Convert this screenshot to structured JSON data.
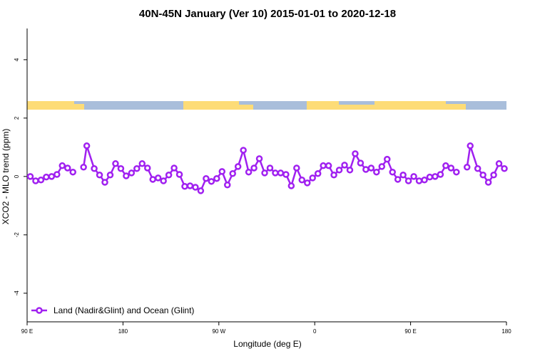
{
  "chart_data": {
    "type": "line",
    "title": "40N-45N January (Ver 10)   2015-01-01 to 2020-12-18",
    "xlabel": "Longitude (deg E)",
    "ylabel": "XCO2 - MLO trend (ppm)",
    "xlim": [
      90,
      540
    ],
    "ylim": [
      -4.98,
      5.07
    ],
    "xticks": [
      {
        "value": 90,
        "label": "90 E"
      },
      180,
      {
        "value": 270,
        "label": "90 W"
      },
      {
        "value": 360,
        "label": "0"
      },
      {
        "value": 450,
        "label": "90 E"
      },
      {
        "value": 540,
        "label": "180"
      }
    ],
    "yticks": [
      -4,
      -2,
      0,
      2,
      4
    ],
    "legend": "bottom-left",
    "x": [
      93,
      98,
      103,
      108,
      113,
      118,
      123,
      128,
      133,
      138,
      143,
      146,
      153,
      158,
      163,
      168,
      173,
      178,
      183,
      188,
      193,
      198,
      203,
      208,
      213,
      218,
      223,
      228,
      233,
      238,
      243,
      248,
      253,
      258,
      263,
      268,
      273,
      278,
      283,
      288,
      293,
      298,
      303,
      308,
      313,
      318,
      323,
      328,
      333,
      338,
      343,
      348,
      353,
      358,
      363,
      368,
      373,
      378,
      383,
      388,
      393,
      398,
      403,
      408,
      413,
      418,
      423,
      428,
      433,
      438,
      443,
      448,
      453,
      458,
      463,
      468,
      473,
      478,
      483,
      488,
      493,
      498,
      503,
      506,
      513,
      518,
      523,
      528,
      533,
      538
    ],
    "series": [
      {
        "name": "Land (Nadir&Glint) and Ocean (Glint)",
        "color": "#a020f0",
        "values": [
          0,
          -0.15,
          -0.12,
          -0.02,
          0,
          0.07,
          0.37,
          0.29,
          0.15,
          null,
          0.32,
          1.05,
          0.27,
          0.05,
          -0.2,
          0.05,
          0.44,
          0.27,
          0.02,
          0.12,
          0.27,
          0.44,
          0.29,
          -0.1,
          -0.05,
          -0.15,
          0.05,
          0.29,
          0.07,
          -0.34,
          -0.32,
          -0.37,
          -0.49,
          -0.07,
          -0.17,
          -0.07,
          0.17,
          -0.29,
          0.1,
          0.34,
          0.9,
          0.15,
          0.29,
          0.61,
          0.12,
          0.29,
          0.12,
          0.12,
          0.07,
          -0.32,
          0.29,
          -0.12,
          -0.22,
          -0.05,
          0.1,
          0.37,
          0.37,
          0.05,
          0.22,
          0.39,
          0.22,
          0.78,
          0.46,
          0.24,
          0.29,
          0.15,
          0.34,
          0.59,
          0.15,
          -0.1,
          0.05,
          -0.15,
          0,
          -0.15,
          -0.12,
          -0.02,
          0,
          0.07,
          0.37,
          0.29,
          0.15,
          null,
          0.32,
          1.05,
          0.27,
          0.05,
          -0.2,
          0.05,
          0.44,
          0.27
        ]
      }
    ]
  }
}
